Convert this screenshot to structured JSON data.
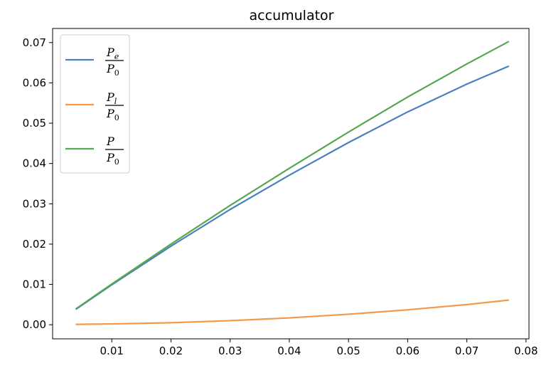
{
  "chart_data": {
    "type": "line",
    "title": "accumulator",
    "xlabel": "",
    "ylabel": "",
    "xlim": [
      0.0,
      0.0805
    ],
    "ylim": [
      -0.0035,
      0.0735
    ],
    "xticks": [
      0.01,
      0.02,
      0.03,
      0.04,
      0.05,
      0.06,
      0.07,
      0.08
    ],
    "xtick_labels": [
      "0.01",
      "0.02",
      "0.03",
      "0.04",
      "0.05",
      "0.06",
      "0.07",
      "0.08"
    ],
    "yticks": [
      0.0,
      0.01,
      0.02,
      0.03,
      0.04,
      0.05,
      0.06,
      0.07
    ],
    "ytick_labels": [
      "0.00",
      "0.01",
      "0.02",
      "0.03",
      "0.04",
      "0.05",
      "0.06",
      "0.07"
    ],
    "grid": false,
    "legend_position": "upper-left",
    "x": [
      0.004,
      0.01,
      0.02,
      0.03,
      0.04,
      0.05,
      0.06,
      0.07,
      0.077
    ],
    "series": [
      {
        "legend_num": "P",
        "legend_sub": "e",
        "legend_den": "P",
        "legend_den_sub": "0",
        "color": "#4c7fbd",
        "values": [
          0.0039,
          0.0099,
          0.0195,
          0.0286,
          0.0371,
          0.0452,
          0.0528,
          0.0597,
          0.0641
        ]
      },
      {
        "legend_num": "P",
        "legend_sub": "l",
        "legend_den": "P",
        "legend_den_sub": "0",
        "color": "#f4994a",
        "values": [
          0.0001,
          0.0002,
          0.0005,
          0.001,
          0.0017,
          0.0026,
          0.0037,
          0.005,
          0.0061
        ]
      },
      {
        "legend_num": "P",
        "legend_sub": "",
        "legend_den": "P",
        "legend_den_sub": "0",
        "color": "#55a84f",
        "values": [
          0.004,
          0.0101,
          0.02,
          0.0296,
          0.0388,
          0.0478,
          0.0565,
          0.0647,
          0.0702
        ]
      }
    ]
  }
}
